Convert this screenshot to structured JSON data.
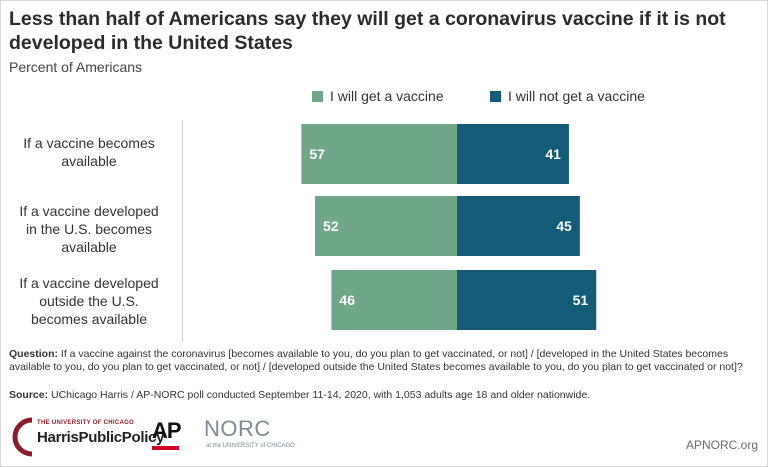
{
  "chart_data": {
    "type": "bar",
    "stacked": true,
    "diverging": true,
    "title": "Less than half of Americans say they will get a coronavirus vaccine if it is not developed in the United States",
    "subtitle": "Percent of Americans",
    "categories": [
      "If a vaccine becomes available",
      "If a vaccine developed in the U.S. becomes available",
      "If a vaccine developed outside the U.S. becomes available"
    ],
    "category_lines": [
      [
        "If a vaccine becomes",
        "available"
      ],
      [
        "If a vaccine developed",
        "in the U.S. becomes",
        "available"
      ],
      [
        "If a vaccine developed",
        "outside the U.S.",
        "becomes available"
      ]
    ],
    "series": [
      {
        "name": "I will get a vaccine",
        "values": [
          57,
          52,
          46
        ],
        "color": "#6fa788"
      },
      {
        "name": "I will not get a vaccine",
        "values": [
          41,
          45,
          51
        ],
        "color": "#135b77"
      }
    ],
    "legend_position": "top",
    "grid": false,
    "data_labels": true
  },
  "footnote": {
    "question_label": "Question:",
    "question_text": "If a vaccine against the coronavirus [becomes available to you, do you plan to get vaccinated, or not] / [developed in the United States becomes  available to you, do you plan to get vaccinated, or not] / [developed  outside the United States becomes  available to you, do you plan to get vaccinated or not]?",
    "source_label": "Source:",
    "source_text": "UChicago Harris / AP-NORC poll conducted September 11-14, 2020, with 1,053 adults age 18 and older nationwide."
  },
  "logos": {
    "harris_small": "THE UNIVERSITY OF CHICAGO",
    "harris_big": "HarrisPublicPolicy",
    "ap": "AP",
    "norc": "NORC",
    "norc_sub": "at the UNIVERSITY of CHICAGO",
    "url": "APNORC.org"
  },
  "colors": {
    "will_get": "#6fa788",
    "will_not_get": "#135b77",
    "harris_red": "#8a1c2b",
    "ap_red": "#d1002b"
  }
}
